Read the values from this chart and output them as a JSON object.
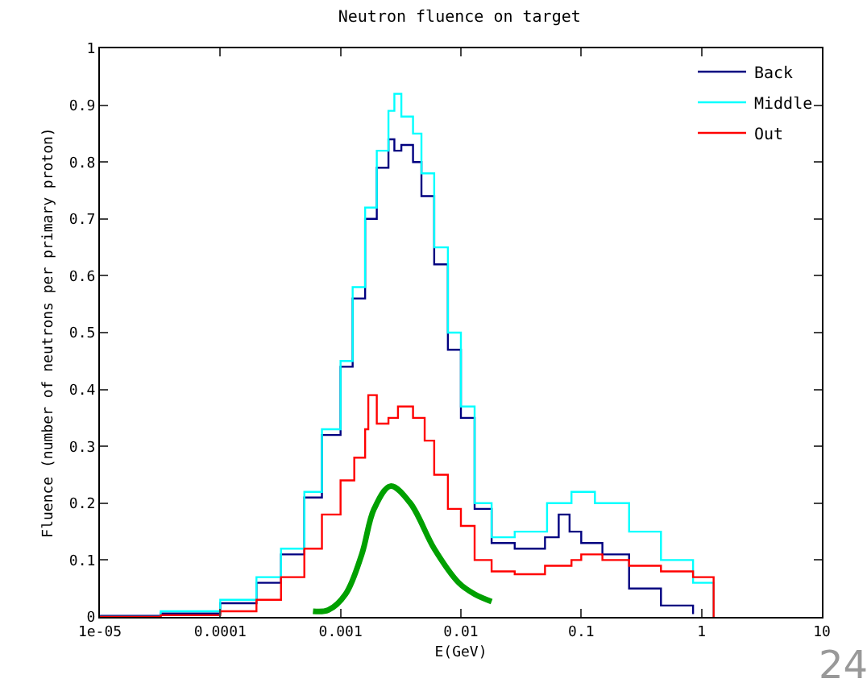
{
  "chart_data": {
    "type": "step",
    "title": "Neutron fluence on target",
    "xlabel": "E(GeV)",
    "ylabel": "Fluence (number of neutrons per primary proton)",
    "log": "x",
    "xlim": [
      1e-05,
      10
    ],
    "xticks": [
      {
        "value": 1e-05,
        "label": "1e-05"
      },
      0.0001,
      0.001,
      0.01,
      0.1,
      1,
      10
    ],
    "ylim": [
      0,
      1
    ],
    "yticks": [
      0,
      0.1,
      0.2,
      0.3,
      0.4,
      0.5,
      0.6,
      0.7,
      0.8,
      0.9,
      1
    ],
    "grid": false,
    "legend": "top right",
    "annotations": [
      "24"
    ],
    "series": [
      {
        "name": "Back",
        "color": "#000080",
        "x": [
          1e-05,
          3.2e-05,
          0.0001,
          0.0002,
          0.00032,
          0.0005,
          0.0007,
          0.001,
          0.00126,
          0.0016,
          0.002,
          0.0025,
          0.0028,
          0.0032,
          0.004,
          0.0047,
          0.006,
          0.0078,
          0.01,
          0.013,
          0.018,
          0.028,
          0.05,
          0.065,
          0.08,
          0.1,
          0.15,
          0.25,
          0.46,
          0.85
        ],
        "values": [
          0.002,
          0.006,
          0.024,
          0.06,
          0.11,
          0.21,
          0.32,
          0.44,
          0.56,
          0.7,
          0.79,
          0.84,
          0.82,
          0.83,
          0.8,
          0.74,
          0.62,
          0.47,
          0.35,
          0.19,
          0.13,
          0.12,
          0.14,
          0.18,
          0.15,
          0.13,
          0.11,
          0.05,
          0.02,
          0.005
        ]
      },
      {
        "name": "Middle",
        "color": "#00ffff",
        "x": [
          1e-05,
          3.2e-05,
          0.0001,
          0.0002,
          0.00032,
          0.0005,
          0.0007,
          0.001,
          0.00126,
          0.0016,
          0.002,
          0.0025,
          0.0028,
          0.0032,
          0.004,
          0.0047,
          0.006,
          0.0078,
          0.01,
          0.013,
          0.018,
          0.028,
          0.052,
          0.083,
          0.13,
          0.25,
          0.46,
          0.85,
          1.26
        ],
        "values": [
          0,
          0.01,
          0.03,
          0.07,
          0.12,
          0.22,
          0.33,
          0.45,
          0.58,
          0.72,
          0.82,
          0.89,
          0.92,
          0.88,
          0.85,
          0.78,
          0.65,
          0.5,
          0.37,
          0.2,
          0.14,
          0.15,
          0.2,
          0.22,
          0.2,
          0.15,
          0.1,
          0.06,
          0
        ]
      },
      {
        "name": "Out",
        "color": "#ff0000",
        "x": [
          1e-05,
          3.2e-05,
          0.0001,
          0.0002,
          0.00032,
          0.0005,
          0.0007,
          0.001,
          0.0013,
          0.0016,
          0.0017,
          0.002,
          0.0025,
          0.003,
          0.004,
          0.005,
          0.006,
          0.0078,
          0.01,
          0.013,
          0.018,
          0.028,
          0.05,
          0.083,
          0.1,
          0.15,
          0.25,
          0.46,
          0.85,
          1.0,
          1.26
        ],
        "values": [
          0,
          0.003,
          0.01,
          0.03,
          0.07,
          0.12,
          0.18,
          0.24,
          0.28,
          0.33,
          0.39,
          0.34,
          0.35,
          0.37,
          0.35,
          0.31,
          0.25,
          0.19,
          0.16,
          0.1,
          0.08,
          0.075,
          0.09,
          0.1,
          0.11,
          0.1,
          0.09,
          0.08,
          0.07,
          0.07,
          0
        ]
      },
      {
        "type": "line",
        "color": "#00a000",
        "x": [
          0.00059,
          0.00079,
          0.0011,
          0.0015,
          0.0019,
          0.0026,
          0.0038,
          0.006,
          0.0096,
          0.013,
          0.018
        ],
        "values": [
          0.01,
          0.012,
          0.04,
          0.11,
          0.19,
          0.23,
          0.2,
          0.12,
          0.06,
          0.04,
          0.027
        ]
      }
    ]
  }
}
